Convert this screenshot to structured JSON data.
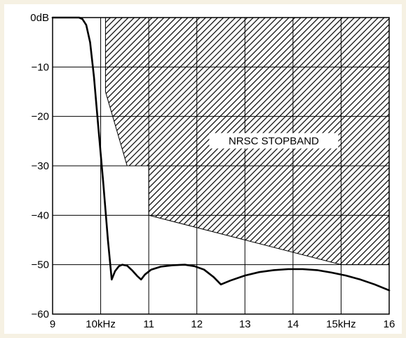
{
  "chart_data": {
    "type": "line",
    "title": "",
    "xlabel": "",
    "ylabel": "",
    "xlim": [
      9,
      16
    ],
    "ylim": [
      -60,
      0
    ],
    "grid": true,
    "x_ticks": [
      {
        "value": 9,
        "label": "9"
      },
      {
        "value": 10,
        "label": "10kHz"
      },
      {
        "value": 11,
        "label": "11"
      },
      {
        "value": 12,
        "label": "12"
      },
      {
        "value": 13,
        "label": "13"
      },
      {
        "value": 14,
        "label": "14"
      },
      {
        "value": 15,
        "label": "15kHz"
      },
      {
        "value": 16,
        "label": "16"
      }
    ],
    "y_ticks": [
      {
        "value": 0,
        "label": "0dB"
      },
      {
        "value": -10,
        "label": "−10"
      },
      {
        "value": -20,
        "label": "−20"
      },
      {
        "value": -30,
        "label": "−30"
      },
      {
        "value": -40,
        "label": "−40"
      },
      {
        "value": -50,
        "label": "−50"
      },
      {
        "value": -60,
        "label": "−60"
      }
    ],
    "stopband": {
      "label": "NRSC STOPBAND",
      "label_position": {
        "x": 13.6,
        "y": -25.5
      },
      "boundary": [
        [
          10.1,
          0
        ],
        [
          16,
          0
        ],
        [
          16,
          -50
        ],
        [
          15,
          -50
        ],
        [
          11,
          -40
        ],
        [
          11,
          -30
        ],
        [
          10.55,
          -30
        ],
        [
          10.1,
          -15
        ]
      ]
    },
    "series": [
      {
        "name": "",
        "points": [
          [
            9,
            0
          ],
          [
            9.35,
            0
          ],
          [
            9.55,
            0
          ],
          [
            9.62,
            -0.3
          ],
          [
            9.7,
            -1.5
          ],
          [
            9.78,
            -5
          ],
          [
            9.86,
            -12
          ],
          [
            9.95,
            -22
          ],
          [
            10.05,
            -33
          ],
          [
            10.15,
            -45
          ],
          [
            10.23,
            -53
          ],
          [
            10.3,
            -51.3
          ],
          [
            10.38,
            -50.3
          ],
          [
            10.45,
            -50
          ],
          [
            10.55,
            -50.2
          ],
          [
            10.66,
            -51.2
          ],
          [
            10.76,
            -52.3
          ],
          [
            10.84,
            -53
          ],
          [
            10.92,
            -52
          ],
          [
            11.05,
            -51
          ],
          [
            11.25,
            -50.4
          ],
          [
            11.5,
            -50.1
          ],
          [
            11.75,
            -50.0
          ],
          [
            11.95,
            -50.3
          ],
          [
            12.15,
            -51
          ],
          [
            12.35,
            -52.5
          ],
          [
            12.5,
            -54
          ],
          [
            12.7,
            -53.2
          ],
          [
            13.0,
            -52.2
          ],
          [
            13.3,
            -51.5
          ],
          [
            13.6,
            -51.1
          ],
          [
            13.9,
            -50.9
          ],
          [
            14.2,
            -50.9
          ],
          [
            14.5,
            -51.1
          ],
          [
            14.8,
            -51.6
          ],
          [
            15.1,
            -52.2
          ],
          [
            15.4,
            -53
          ],
          [
            15.7,
            -54
          ],
          [
            16,
            -55.2
          ]
        ]
      }
    ]
  }
}
